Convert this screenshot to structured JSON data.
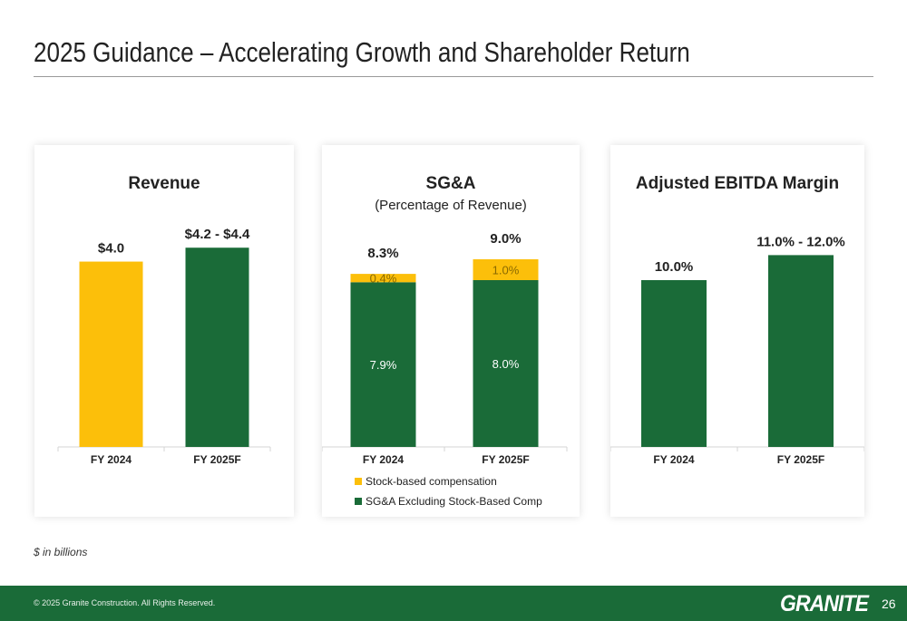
{
  "title": "2025 Guidance – Accelerating Growth and Shareholder Return",
  "note": "$ in billions",
  "footer": {
    "copyright": "© 2025 Granite Construction. All Rights Reserved.",
    "logo": "GRANITE",
    "page": "26"
  },
  "colors": {
    "green": "#1a6b38",
    "yellow": "#fcbf0a"
  },
  "chart_data": [
    {
      "type": "bar",
      "title": "Revenue",
      "subtitle": "",
      "categories": [
        "FY 2024",
        "FY 2025F"
      ],
      "values": [
        4.0,
        4.3
      ],
      "value_labels": [
        "$4.0",
        "$4.2 - $4.4"
      ],
      "bar_colors": [
        "#fcbf0a",
        "#1a6b38"
      ],
      "ylim": [
        0,
        4.5
      ]
    },
    {
      "type": "bar",
      "stacked": true,
      "title": "SG&A",
      "subtitle": "(Percentage of Revenue)",
      "categories": [
        "FY 2024",
        "FY 2025F"
      ],
      "series": [
        {
          "name": "SG&A Excluding Stock-Based Comp",
          "color": "#1a6b38",
          "values": [
            7.9,
            8.0
          ],
          "labels": [
            "7.9%",
            "8.0%"
          ]
        },
        {
          "name": "Stock-based compensation",
          "color": "#fcbf0a",
          "values": [
            0.4,
            1.0
          ],
          "labels": [
            "0.4%",
            "1.0%"
          ]
        }
      ],
      "totals": [
        "8.3%",
        "9.0%"
      ],
      "legend": [
        "Stock-based compensation",
        "SG&A Excluding Stock-Based Comp"
      ],
      "ylim": [
        0,
        10
      ]
    },
    {
      "type": "bar",
      "title": "Adjusted EBITDA Margin",
      "subtitle": "",
      "categories": [
        "FY 2024",
        "FY 2025F"
      ],
      "values": [
        10.0,
        11.5
      ],
      "value_labels": [
        "10.0%",
        "11.0% - 12.0%"
      ],
      "bar_colors": [
        "#1a6b38",
        "#1a6b38"
      ],
      "ylim": [
        0,
        12.5
      ]
    }
  ]
}
